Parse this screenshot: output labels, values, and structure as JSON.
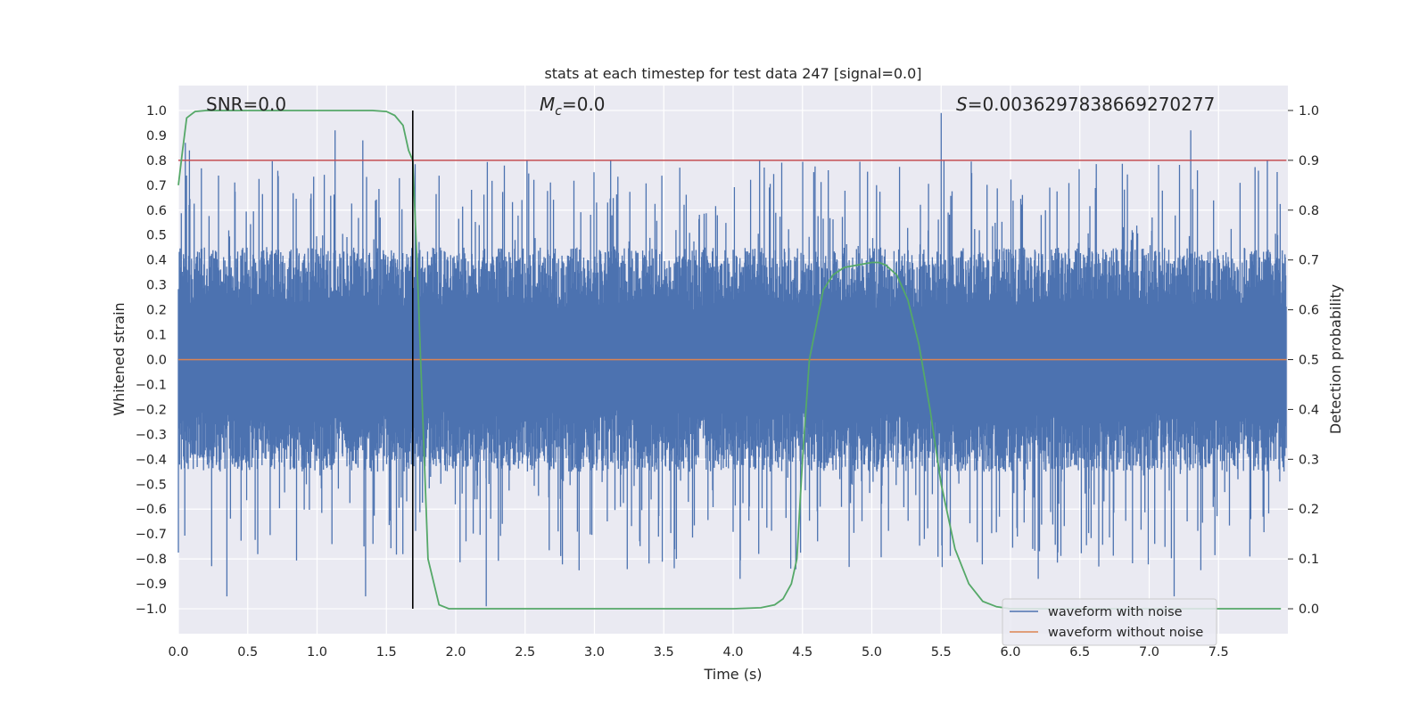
{
  "chart_data": {
    "type": "line",
    "title": "stats at each timestep for test data 247 [signal=0.0]",
    "xlabel": "Time (s)",
    "ylabel": "Whitened strain",
    "ylabel_right": "Detection probability",
    "xlim": [
      0.0,
      8.0
    ],
    "ylim": [
      -1.1,
      1.1
    ],
    "ylim_right": [
      -0.05,
      1.05
    ],
    "xticks": [
      "0.0",
      "0.5",
      "1.0",
      "1.5",
      "2.0",
      "2.5",
      "3.0",
      "3.5",
      "4.0",
      "4.5",
      "5.0",
      "5.5",
      "6.0",
      "6.5",
      "7.0",
      "7.5"
    ],
    "xtick_values": [
      0.0,
      0.5,
      1.0,
      1.5,
      2.0,
      2.5,
      3.0,
      3.5,
      4.0,
      4.5,
      5.0,
      5.5,
      6.0,
      6.5,
      7.0,
      7.5
    ],
    "yticks": [
      "1.0",
      "0.9",
      "0.8",
      "0.7",
      "0.6",
      "0.5",
      "0.4",
      "0.3",
      "0.2",
      "0.1",
      "0.0",
      "−0.1",
      "−0.2",
      "−0.3",
      "−0.4",
      "−0.5",
      "−0.6",
      "−0.7",
      "−0.8",
      "−0.9",
      "−1.0"
    ],
    "ytick_values": [
      1.0,
      0.9,
      0.8,
      0.7,
      0.6,
      0.5,
      0.4,
      0.3,
      0.2,
      0.1,
      0.0,
      -0.1,
      -0.2,
      -0.3,
      -0.4,
      -0.5,
      -0.6,
      -0.7,
      -0.8,
      -0.9,
      -1.0
    ],
    "yticks_right": [
      "1.0",
      "0.9",
      "0.8",
      "0.7",
      "0.6",
      "0.5",
      "0.4",
      "0.3",
      "0.2",
      "0.1",
      "0.0"
    ],
    "ytick_values_right": [
      1.0,
      0.9,
      0.8,
      0.7,
      0.6,
      0.5,
      0.4,
      0.3,
      0.2,
      0.1,
      0.0
    ],
    "annotations": {
      "snr": "SNR=0.0",
      "mc_symbol": "M",
      "mc_subscript": "c",
      "mc_value": "=0.0",
      "s_symbol": "S",
      "s_value": "=0.0036297838669270277"
    },
    "legend": {
      "position": "lower-right",
      "entries": [
        {
          "name": "waveform with noise",
          "color": "#4c72b0"
        },
        {
          "name": "waveform without noise",
          "color": "#dd8452"
        }
      ]
    },
    "series": [
      {
        "name": "waveform with noise",
        "color": "#4c72b0",
        "description": "whitened noise, |amplitude| mostly under 0.5 with spikes up to ~0.99"
      },
      {
        "name": "waveform without noise",
        "color": "#dd8452",
        "values_constant": 0.0
      },
      {
        "name": "detection probability",
        "color": "#55a868",
        "axis": "right",
        "x": [
          0.0,
          0.03,
          0.06,
          0.12,
          0.2,
          0.3,
          1.4,
          1.5,
          1.56,
          1.62,
          1.66,
          1.69,
          1.72,
          1.76,
          1.8,
          1.88,
          1.95,
          2.0,
          4.0,
          4.2,
          4.3,
          4.36,
          4.42,
          4.46,
          4.5,
          4.55,
          4.6,
          4.65,
          4.72,
          4.8,
          4.9,
          5.0,
          5.05,
          5.1,
          5.18,
          5.26,
          5.34,
          5.42,
          5.5,
          5.6,
          5.7,
          5.8,
          5.9,
          6.0,
          7.95
        ],
        "y": [
          0.85,
          0.92,
          0.985,
          0.998,
          1.0,
          1.0,
          1.0,
          0.998,
          0.99,
          0.97,
          0.92,
          0.9,
          0.7,
          0.4,
          0.1,
          0.008,
          0.0,
          0.0,
          0.0,
          0.002,
          0.008,
          0.02,
          0.05,
          0.1,
          0.3,
          0.5,
          0.57,
          0.64,
          0.67,
          0.685,
          0.69,
          0.695,
          0.695,
          0.69,
          0.67,
          0.62,
          0.53,
          0.4,
          0.25,
          0.12,
          0.05,
          0.015,
          0.004,
          0.0,
          0.0
        ]
      },
      {
        "name": "threshold",
        "color": "#c44e52",
        "axis": "right",
        "values_constant": 0.9
      },
      {
        "name": "detection time marker",
        "color": "#000000",
        "x_value": 1.69,
        "y_range": [
          -1.0,
          1.0
        ]
      }
    ]
  }
}
